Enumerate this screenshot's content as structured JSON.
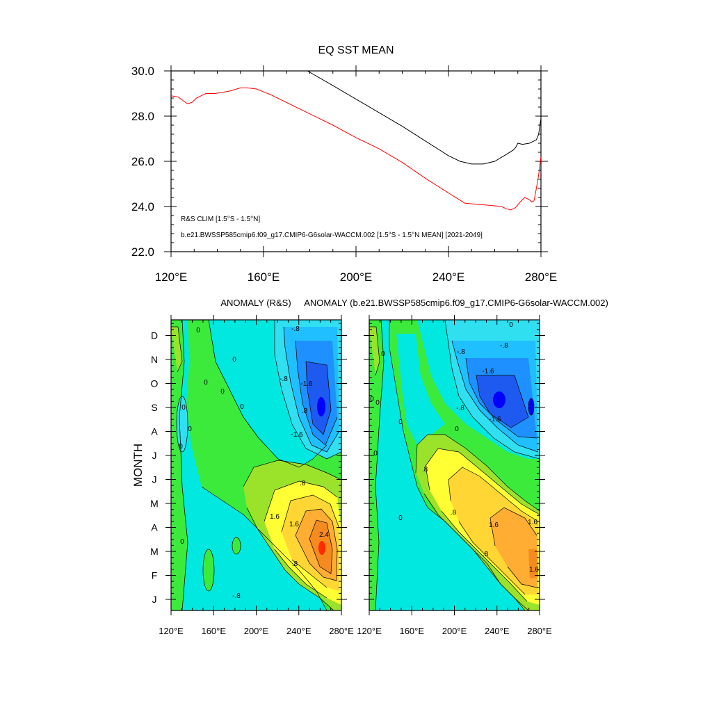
{
  "chart_data": [
    {
      "type": "line",
      "title": "EQ SST MEAN",
      "xlabel": "",
      "ylabel": "",
      "xlim": [
        120,
        280
      ],
      "ylim": [
        22,
        30
      ],
      "x_ticks": [
        120,
        160,
        200,
        240,
        280
      ],
      "x_tick_labels": [
        "120°E",
        "160°E",
        "200°E",
        "240°E",
        "280°E"
      ],
      "y_ticks": [
        22,
        24,
        26,
        28,
        30
      ],
      "y_tick_labels": [
        "22.0",
        "24.0",
        "26.0",
        "28.0",
        "30.0"
      ],
      "series": [
        {
          "name": "R&S CLIM [1.5°S - 1.5°N]",
          "color": "#ff0000",
          "x": [
            120,
            123,
            127,
            129,
            131,
            135,
            139,
            145,
            150,
            153,
            157,
            163,
            170,
            180,
            190,
            200,
            210,
            220,
            230,
            240,
            247,
            252,
            258,
            263,
            265,
            267,
            269,
            271,
            273,
            275,
            276,
            277,
            278,
            279,
            280
          ],
          "y": [
            28.9,
            28.85,
            28.55,
            28.6,
            28.8,
            29.0,
            29.0,
            29.1,
            29.25,
            29.25,
            29.2,
            28.95,
            28.6,
            28.1,
            27.6,
            27.05,
            26.55,
            25.95,
            25.25,
            24.6,
            24.15,
            24.1,
            24.05,
            24.0,
            23.9,
            23.85,
            23.95,
            24.2,
            24.4,
            24.3,
            24.2,
            24.25,
            24.8,
            25.4,
            26.2
          ]
        },
        {
          "name": "b.e21.BWSSP585cmip6.f09_g17.CMIP6-G6solar-WACCM.002 [1.5°S - 1.5°N MEAN] [2021-2049]",
          "color": "#000000",
          "x": [
            179,
            190,
            200,
            210,
            220,
            230,
            240,
            245,
            250,
            255,
            260,
            265,
            268,
            269,
            270,
            272,
            275,
            278,
            279,
            280
          ],
          "y": [
            30.0,
            29.35,
            28.75,
            28.15,
            27.55,
            26.9,
            26.25,
            26.0,
            25.88,
            25.88,
            26.0,
            26.3,
            26.5,
            26.6,
            26.8,
            26.75,
            26.8,
            26.95,
            27.2,
            27.9
          ]
        }
      ],
      "legend_placement": "bottom-left",
      "grid": false
    },
    {
      "type": "heatmap",
      "title": "ANOMALY (R&S)",
      "ylabel": "MONTH",
      "xlim": [
        120,
        280
      ],
      "x_ticks": [
        120,
        160,
        200,
        240,
        280
      ],
      "x_tick_labels": [
        "120°E",
        "160°E",
        "200°E",
        "240°E",
        "280°E"
      ],
      "y_categories": [
        "J",
        "F",
        "M",
        "A",
        "M",
        "J",
        "J",
        "A",
        "S",
        "O",
        "N",
        "D"
      ],
      "contour_interval": 0.4,
      "contour_labels": [
        "0",
        "0",
        "0",
        "0",
        "0",
        "0",
        "0",
        "0",
        "0",
        "-.8",
        "-.8",
        "-.8",
        "-1.6",
        "-1.6",
        ".8",
        ".8",
        "1.6",
        "1.6",
        "2.4",
        ".8"
      ],
      "extremes": {
        "min": -2.2,
        "min_at": [
          262,
          "S"
        ],
        "max": 2.8,
        "max_at": [
          262,
          "M"
        ]
      }
    },
    {
      "type": "heatmap",
      "title": "ANOMALY (b.e21.BWSSP585cmip6.f09_g17.CMIP6-G6solar-WACCM.002)",
      "xlim": [
        120,
        280
      ],
      "x_ticks": [
        120,
        160,
        200,
        240,
        280
      ],
      "x_tick_labels": [
        "120°E",
        "160°E",
        "200°E",
        "240°E",
        "280°E"
      ],
      "y_categories": [
        "J",
        "F",
        "M",
        "A",
        "M",
        "J",
        "J",
        "A",
        "S",
        "O",
        "N",
        "D"
      ],
      "contour_interval": 0.4,
      "contour_labels": [
        "0",
        "0",
        "0",
        "0",
        "0",
        "0",
        "0",
        "0",
        "-.8",
        "-.8",
        "-.8",
        "-1.6",
        "-1.6",
        ".8",
        ".8",
        ".8",
        "1.6",
        "1.6",
        "1.6"
      ],
      "extremes": {
        "min": -2.2,
        "min_at": [
          245,
          "S"
        ],
        "max": 2.0,
        "max_at": [
          265,
          "M"
        ]
      }
    }
  ],
  "palette": {
    "below_m2": "#0000ff",
    "m2_m1_6": "#1e5af0",
    "m1_6_m1_2": "#1e90ff",
    "m1_2_m0_8": "#20bfff",
    "m0_8_m0_4": "#30dff0",
    "m0_4_0": "#00e8e0",
    "zero_0_4": "#3cea3c",
    "p0_4_0_8": "#9be22a",
    "p0_8_1_2": "#ffff33",
    "p1_2_1_6": "#ffd633",
    "p1_6_2_0": "#ffad33",
    "p2_0_2_4": "#f58a1f",
    "above_2_4": "#ff2a00"
  }
}
